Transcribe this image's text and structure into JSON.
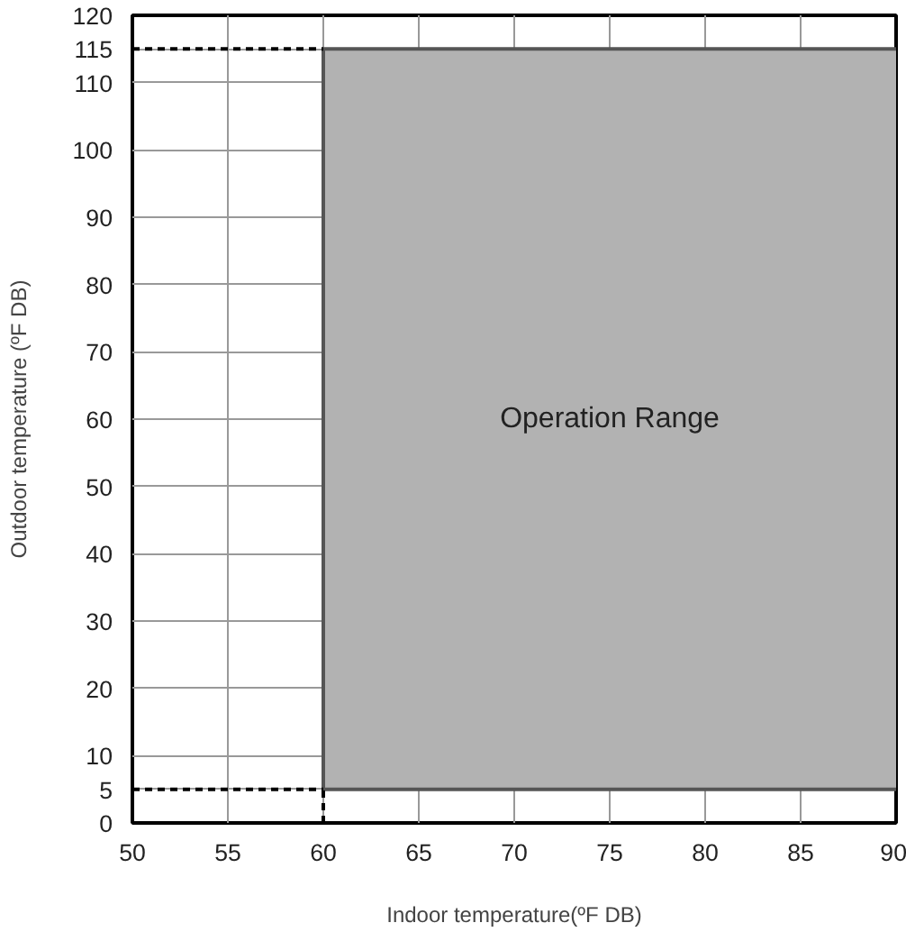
{
  "chart_data": {
    "type": "line",
    "xlabel": "Indoor temperature(ºF DB)",
    "ylabel": "Outdoor temperature (ºF DB)",
    "xlim": [
      50,
      90
    ],
    "ylim": [
      0,
      120
    ],
    "xticks": [
      50,
      55,
      60,
      65,
      70,
      75,
      80,
      85,
      90
    ],
    "yticks": [
      0,
      5,
      10,
      20,
      30,
      40,
      50,
      60,
      70,
      80,
      90,
      100,
      110,
      115,
      120
    ],
    "grid": true,
    "series": [
      {
        "color": "#555555",
        "x": [
          60,
          90
        ],
        "values": [
          115,
          115
        ],
        "lower": [
          5,
          5
        ],
        "upper": [
          115,
          115
        ]
      },
      {
        "type": "line",
        "color": "#555555",
        "x": [
          60,
          90
        ],
        "values": [
          5,
          5
        ]
      },
      {
        "type": "line",
        "color": "#555555",
        "x": [
          60,
          60
        ],
        "values": [
          5,
          115
        ]
      },
      {
        "type": "line",
        "color": "#000000",
        "line_style": "dashed",
        "x": [
          50,
          60
        ],
        "values": [
          115,
          115
        ]
      },
      {
        "type": "line",
        "color": "#000000",
        "line_style": "dashed",
        "x": [
          50,
          60
        ],
        "values": [
          5,
          5
        ]
      },
      {
        "type": "line",
        "color": "#000000",
        "line_style": "dashed",
        "x": [
          60,
          60
        ],
        "values": [
          0,
          5
        ]
      }
    ],
    "annotations": [
      "Operation Range"
    ]
  }
}
